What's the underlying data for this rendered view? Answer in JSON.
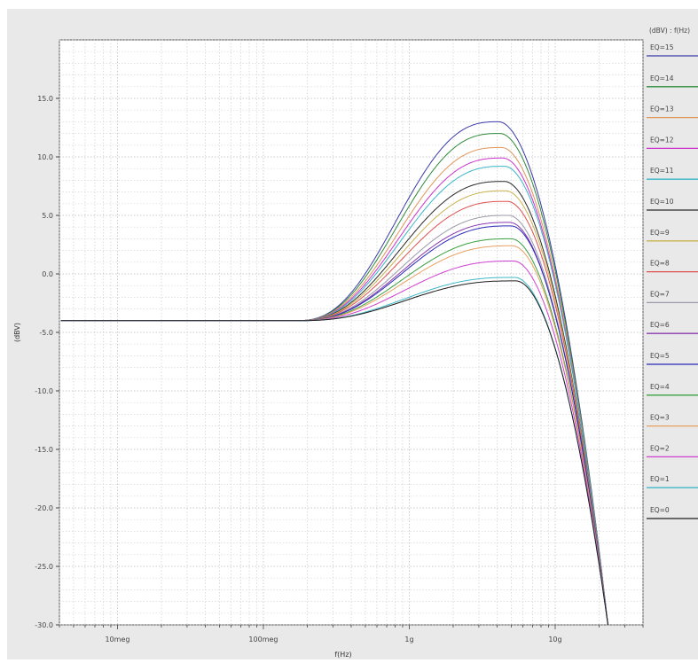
{
  "chart_data": {
    "type": "line",
    "title": "",
    "xlabel": "f(Hz)",
    "ylabel": "(dBV)",
    "x_scale": "log",
    "xlim": [
      4000000,
      40000000000
    ],
    "ylim": [
      -30,
      20
    ],
    "grid": true,
    "x_tick_labels": [
      {
        "value": 10000000,
        "label": "10meg"
      },
      {
        "value": 100000000,
        "label": "100meg"
      },
      {
        "value": 1000000000,
        "label": "1g"
      },
      {
        "value": 10000000000,
        "label": "10g"
      }
    ],
    "y_ticks": [
      {
        "value": 15,
        "label": "15.0"
      },
      {
        "value": 10,
        "label": "10.0"
      },
      {
        "value": 5,
        "label": "5.0"
      },
      {
        "value": 0,
        "label": "0.0"
      },
      {
        "value": -5,
        "label": "-5.0"
      },
      {
        "value": -10,
        "label": "-10.0"
      },
      {
        "value": -15,
        "label": "-15.0"
      },
      {
        "value": -20,
        "label": "-20.0"
      },
      {
        "value": -25,
        "label": "-25.0"
      },
      {
        "value": -30,
        "label": "-30.0"
      }
    ],
    "legend_title": "(dBV) : f(Hz)",
    "legend_position": "right",
    "model": {
      "flat_level_dBV": -4.0,
      "rolloff_end_freq_hz": 23000000000,
      "rolloff_end_dBV": -30
    },
    "series": [
      {
        "name": "EQ=15",
        "color": "#3a3aa8",
        "peak_dBV": 13.0,
        "peak_freq_hz": 4100000000
      },
      {
        "name": "EQ=14",
        "color": "#2f8a3a",
        "peak_dBV": 12.0,
        "peak_freq_hz": 4200000000
      },
      {
        "name": "EQ=13",
        "color": "#e0955a",
        "peak_dBV": 10.8,
        "peak_freq_hz": 4300000000
      },
      {
        "name": "EQ=12",
        "color": "#cc33cc",
        "peak_dBV": 9.9,
        "peak_freq_hz": 4400000000
      },
      {
        "name": "EQ=11",
        "color": "#39b5c8",
        "peak_dBV": 9.2,
        "peak_freq_hz": 4500000000
      },
      {
        "name": "EQ=10",
        "color": "#2a2a2a",
        "peak_dBV": 7.9,
        "peak_freq_hz": 4500000000
      },
      {
        "name": "EQ=9",
        "color": "#c9b24e",
        "peak_dBV": 7.1,
        "peak_freq_hz": 4600000000
      },
      {
        "name": "EQ=8",
        "color": "#e05050",
        "peak_dBV": 6.2,
        "peak_freq_hz": 4700000000
      },
      {
        "name": "EQ=7",
        "color": "#9a9aa8",
        "peak_dBV": 5.0,
        "peak_freq_hz": 4800000000
      },
      {
        "name": "EQ=6",
        "color": "#8a3ab0",
        "peak_dBV": 4.4,
        "peak_freq_hz": 4900000000
      },
      {
        "name": "EQ=5",
        "color": "#2a2ab8",
        "peak_dBV": 4.1,
        "peak_freq_hz": 5000000000
      },
      {
        "name": "EQ=4",
        "color": "#3aa040",
        "peak_dBV": 3.0,
        "peak_freq_hz": 5000000000
      },
      {
        "name": "EQ=3",
        "color": "#e8a060",
        "peak_dBV": 2.4,
        "peak_freq_hz": 5100000000
      },
      {
        "name": "EQ=2",
        "color": "#d040d0",
        "peak_dBV": 1.1,
        "peak_freq_hz": 5200000000
      },
      {
        "name": "EQ=1",
        "color": "#3fb8c8",
        "peak_dBV": -0.3,
        "peak_freq_hz": 5300000000
      },
      {
        "name": "EQ=0",
        "color": "#1e1e1e",
        "peak_dBV": -0.6,
        "peak_freq_hz": 5400000000
      }
    ]
  }
}
